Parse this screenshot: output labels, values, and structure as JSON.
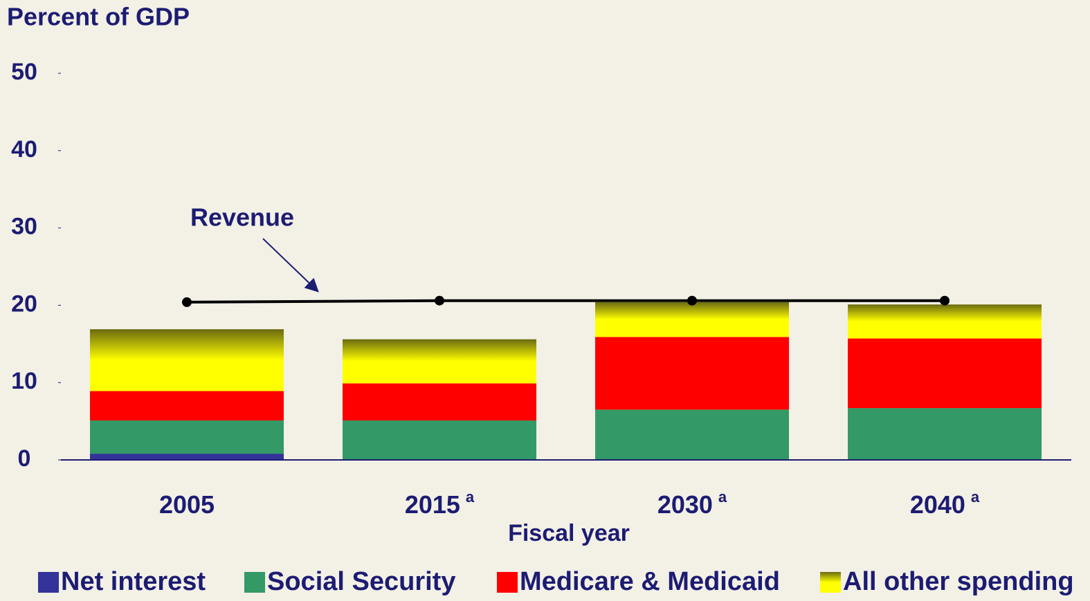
{
  "chart_data": {
    "type": "bar",
    "stacked": true,
    "y_axis_title": "Percent of GDP",
    "x_axis_title": "Fiscal year",
    "categories": [
      "2005",
      "2015",
      "2030",
      "2040"
    ],
    "category_notes": [
      null,
      "a",
      "a",
      "a"
    ],
    "ylim": [
      0,
      50
    ],
    "yticks": [
      0,
      10,
      20,
      30,
      40,
      50
    ],
    "series": [
      {
        "name": "Net interest",
        "color": "#333399",
        "values": [
          0.8,
          0,
          0,
          0
        ]
      },
      {
        "name": "Social Security",
        "color": "#339966",
        "values": [
          4.3,
          5.1,
          6.5,
          6.7
        ]
      },
      {
        "name": "Medicare & Medicaid",
        "color": "#ff0000",
        "values": [
          3.8,
          4.8,
          9.4,
          9.0
        ]
      },
      {
        "name": "All other spending",
        "color": "#ffff00",
        "values": [
          8.0,
          5.7,
          4.5,
          4.4
        ]
      }
    ],
    "revenue": {
      "name": "Revenue",
      "color": "#000000",
      "values": [
        20.4,
        20.6,
        20.6,
        20.6
      ]
    }
  }
}
